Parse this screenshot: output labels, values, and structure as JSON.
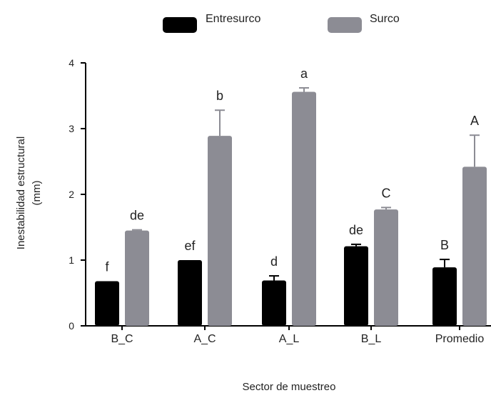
{
  "chart_data": {
    "type": "bar",
    "xlabel": "Sector de muestreo",
    "ylabel_line1": "Inestabilidad estructural",
    "ylabel_line2": "(mm)",
    "categories": [
      "B_C",
      "A_C",
      "A_L",
      "B_L",
      "Promedio"
    ],
    "ylim": [
      0,
      4
    ],
    "yticks": [
      0,
      1,
      2,
      3,
      4
    ],
    "legend_position": "top-center",
    "series": [
      {
        "name": "Entresurco",
        "color": "#000000",
        "values": [
          0.68,
          1.0,
          0.69,
          1.21,
          0.89
        ],
        "errors": [
          0.0,
          0.0,
          0.07,
          0.03,
          0.12
        ],
        "labels": [
          "f",
          "ef",
          "d",
          "de",
          "B"
        ]
      },
      {
        "name": "Surco",
        "color": "#8c8c94",
        "values": [
          1.45,
          2.89,
          3.56,
          1.77,
          2.42
        ],
        "errors": [
          0.01,
          0.39,
          0.06,
          0.03,
          0.48
        ],
        "labels": [
          "de",
          "b",
          "a",
          "C",
          "A"
        ]
      }
    ]
  }
}
